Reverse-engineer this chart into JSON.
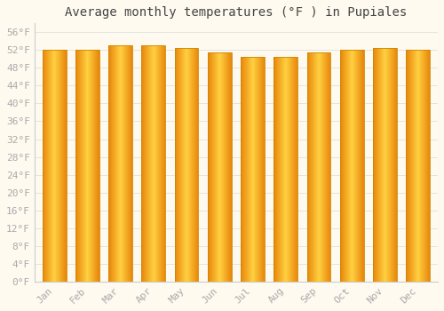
{
  "title": "Average monthly temperatures (°F ) in Pupiales",
  "months": [
    "Jan",
    "Feb",
    "Mar",
    "Apr",
    "May",
    "Jun",
    "Jul",
    "Aug",
    "Sep",
    "Oct",
    "Nov",
    "Dec"
  ],
  "values": [
    52.0,
    52.0,
    53.0,
    53.0,
    52.5,
    51.5,
    50.5,
    50.5,
    51.5,
    52.0,
    52.5,
    52.0
  ],
  "bar_color_left": "#E8850A",
  "bar_color_center": "#FFD040",
  "bar_color_right": "#FFA010",
  "bar_edge_color": "#CC8800",
  "background_color": "#FEFAF0",
  "grid_color": "#E0E0E0",
  "ylim": [
    0,
    58
  ],
  "yticks": [
    0,
    4,
    8,
    12,
    16,
    20,
    24,
    28,
    32,
    36,
    40,
    44,
    48,
    52,
    56
  ],
  "title_fontsize": 10,
  "tick_fontsize": 8,
  "font_color": "#AAAAAA",
  "bar_width": 0.72
}
